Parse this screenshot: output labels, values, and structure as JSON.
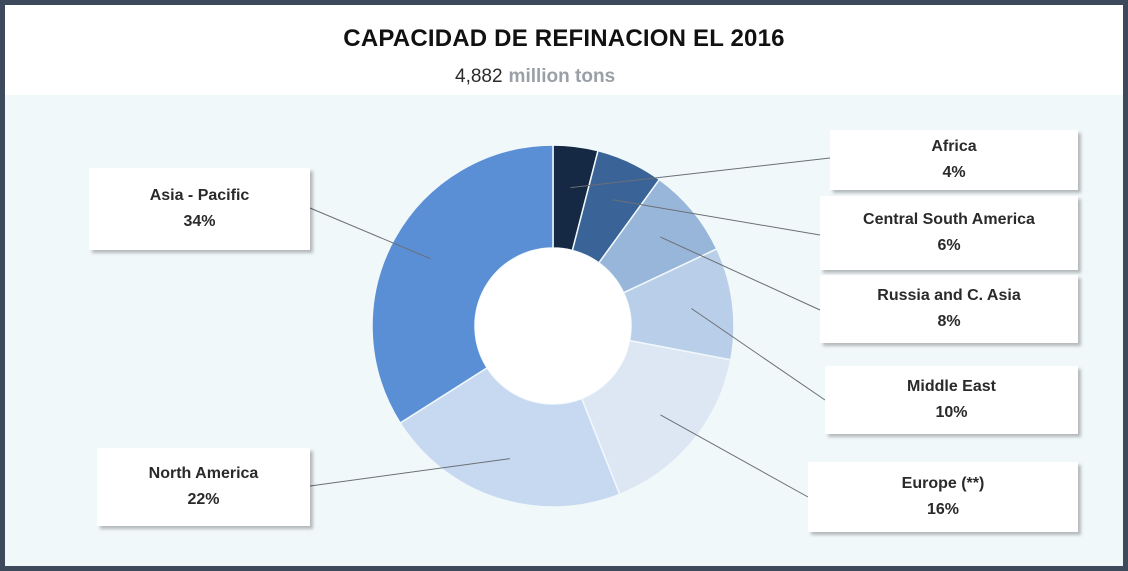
{
  "chart_data": {
    "type": "pie",
    "title": "CAPACIDAD DE REFINACION EL 2016",
    "subtitle_value": "4,882",
    "subtitle_unit": "million tons",
    "slices": [
      {
        "name": "Africa",
        "value": 4,
        "label": "4%",
        "color": "#152844"
      },
      {
        "name": "Central South America",
        "value": 6,
        "label": "6%",
        "color": "#3a6498"
      },
      {
        "name": "Russia and C. Asia",
        "value": 8,
        "label": "8%",
        "color": "#98b6da"
      },
      {
        "name": "Middle East",
        "value": 10,
        "label": "10%",
        "color": "#b9cfe9"
      },
      {
        "name": "Europe (**)",
        "value": 16,
        "label": "16%",
        "color": "#dde7f4"
      },
      {
        "name": "North America",
        "value": 22,
        "label": "22%",
        "color": "#c6d9f1"
      },
      {
        "name": "Asia - Pacific",
        "value": 34,
        "label": "34%",
        "color": "#5a8fd6"
      }
    ]
  }
}
